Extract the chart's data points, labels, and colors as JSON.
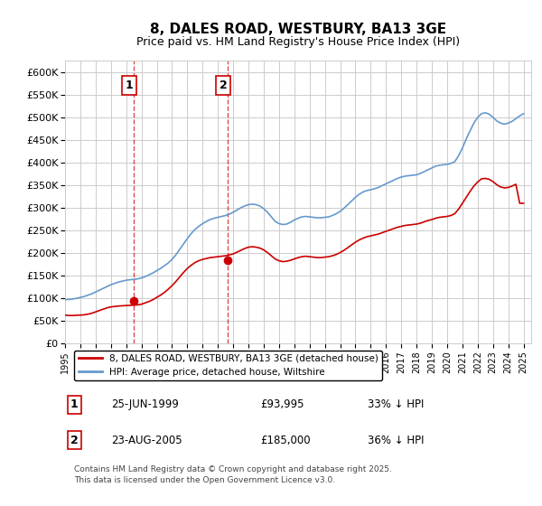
{
  "title": "8, DALES ROAD, WESTBURY, BA13 3GE",
  "subtitle": "Price paid vs. HM Land Registry's House Price Index (HPI)",
  "legend_label_red": "8, DALES ROAD, WESTBURY, BA13 3GE (detached house)",
  "legend_label_blue": "HPI: Average price, detached house, Wiltshire",
  "annotation1_label": "1",
  "annotation1_date": "25-JUN-1999",
  "annotation1_price": "£93,995",
  "annotation1_hpi": "33% ↓ HPI",
  "annotation1_year": 1999.48,
  "annotation1_value_red": 93995,
  "annotation2_label": "2",
  "annotation2_date": "23-AUG-2005",
  "annotation2_price": "£185,000",
  "annotation2_hpi": "36% ↓ HPI",
  "annotation2_year": 2005.64,
  "annotation2_value_red": 185000,
  "footer": "Contains HM Land Registry data © Crown copyright and database right 2025.\nThis data is licensed under the Open Government Licence v3.0.",
  "color_red": "#cc0000",
  "color_blue": "#6699cc",
  "color_vline": "#cc0000",
  "ylim": [
    0,
    625000
  ],
  "ytick_step": 50000,
  "background_color": "#ffffff",
  "grid_color": "#cccccc",
  "hpi_years": [
    1995,
    1995.25,
    1995.5,
    1995.75,
    1996,
    1996.25,
    1996.5,
    1996.75,
    1997,
    1997.25,
    1997.5,
    1997.75,
    1998,
    1998.25,
    1998.5,
    1998.75,
    1999,
    1999.25,
    1999.5,
    1999.75,
    2000,
    2000.25,
    2000.5,
    2000.75,
    2001,
    2001.25,
    2001.5,
    2001.75,
    2002,
    2002.25,
    2002.5,
    2002.75,
    2003,
    2003.25,
    2003.5,
    2003.75,
    2004,
    2004.25,
    2004.5,
    2004.75,
    2005,
    2005.25,
    2005.5,
    2005.75,
    2006,
    2006.25,
    2006.5,
    2006.75,
    2007,
    2007.25,
    2007.5,
    2007.75,
    2008,
    2008.25,
    2008.5,
    2008.75,
    2009,
    2009.25,
    2009.5,
    2009.75,
    2010,
    2010.25,
    2010.5,
    2010.75,
    2011,
    2011.25,
    2011.5,
    2011.75,
    2012,
    2012.25,
    2012.5,
    2012.75,
    2013,
    2013.25,
    2013.5,
    2013.75,
    2014,
    2014.25,
    2014.5,
    2014.75,
    2015,
    2015.25,
    2015.5,
    2015.75,
    2016,
    2016.25,
    2016.5,
    2016.75,
    2017,
    2017.25,
    2017.5,
    2017.75,
    2018,
    2018.25,
    2018.5,
    2018.75,
    2019,
    2019.25,
    2019.5,
    2019.75,
    2020,
    2020.25,
    2020.5,
    2020.75,
    2021,
    2021.25,
    2021.5,
    2021.75,
    2022,
    2022.25,
    2022.5,
    2022.75,
    2023,
    2023.25,
    2023.5,
    2023.75,
    2024,
    2024.25,
    2024.5,
    2024.75,
    2025
  ],
  "hpi_values": [
    97000,
    97500,
    98500,
    100000,
    102000,
    104000,
    107000,
    110000,
    114000,
    118000,
    122000,
    126000,
    130000,
    133000,
    136000,
    138000,
    140000,
    141000,
    142000,
    143000,
    145000,
    148000,
    152000,
    156000,
    161000,
    166000,
    172000,
    178000,
    186000,
    196000,
    208000,
    220000,
    232000,
    243000,
    252000,
    259000,
    265000,
    270000,
    274000,
    277000,
    279000,
    281000,
    283000,
    286000,
    290000,
    295000,
    300000,
    304000,
    307000,
    308000,
    307000,
    304000,
    298000,
    290000,
    280000,
    270000,
    265000,
    263000,
    264000,
    268000,
    273000,
    277000,
    280000,
    281000,
    280000,
    279000,
    278000,
    278000,
    279000,
    280000,
    283000,
    287000,
    292000,
    299000,
    307000,
    315000,
    323000,
    330000,
    335000,
    338000,
    340000,
    342000,
    345000,
    349000,
    353000,
    357000,
    361000,
    365000,
    368000,
    370000,
    371000,
    372000,
    373000,
    376000,
    380000,
    384000,
    388000,
    392000,
    394000,
    395000,
    396000,
    398000,
    402000,
    415000,
    432000,
    452000,
    470000,
    487000,
    500000,
    508000,
    510000,
    507000,
    500000,
    492000,
    487000,
    485000,
    487000,
    491000,
    497000,
    503000,
    508000
  ],
  "red_years": [
    1995,
    1995.25,
    1995.5,
    1995.75,
    1996,
    1996.25,
    1996.5,
    1996.75,
    1997,
    1997.25,
    1997.5,
    1997.75,
    1998,
    1998.25,
    1998.5,
    1998.75,
    1999,
    1999.25,
    1999.5,
    1999.75,
    2000,
    2000.25,
    2000.5,
    2000.75,
    2001,
    2001.25,
    2001.5,
    2001.75,
    2002,
    2002.25,
    2002.5,
    2002.75,
    2003,
    2003.25,
    2003.5,
    2003.75,
    2004,
    2004.25,
    2004.5,
    2004.75,
    2005,
    2005.25,
    2005.5,
    2005.75,
    2006,
    2006.25,
    2006.5,
    2006.75,
    2007,
    2007.25,
    2007.5,
    2007.75,
    2008,
    2008.25,
    2008.5,
    2008.75,
    2009,
    2009.25,
    2009.5,
    2009.75,
    2010,
    2010.25,
    2010.5,
    2010.75,
    2011,
    2011.25,
    2011.5,
    2011.75,
    2012,
    2012.25,
    2012.5,
    2012.75,
    2013,
    2013.25,
    2013.5,
    2013.75,
    2014,
    2014.25,
    2014.5,
    2014.75,
    2015,
    2015.25,
    2015.5,
    2015.75,
    2016,
    2016.25,
    2016.5,
    2016.75,
    2017,
    2017.25,
    2017.5,
    2017.75,
    2018,
    2018.25,
    2018.5,
    2018.75,
    2019,
    2019.25,
    2019.5,
    2019.75,
    2020,
    2020.25,
    2020.5,
    2020.75,
    2021,
    2021.25,
    2021.5,
    2021.75,
    2022,
    2022.25,
    2022.5,
    2022.75,
    2023,
    2023.25,
    2023.5,
    2023.75,
    2024,
    2024.25,
    2024.5,
    2024.75,
    2025
  ],
  "red_values": [
    63000,
    62000,
    62000,
    62500,
    63000,
    63500,
    65000,
    67000,
    70000,
    73000,
    76000,
    79000,
    81000,
    82000,
    83000,
    83500,
    84000,
    84500,
    85000,
    85500,
    87000,
    90000,
    93000,
    97000,
    102000,
    107000,
    113000,
    120000,
    128000,
    137000,
    147000,
    157000,
    166000,
    173000,
    179000,
    183000,
    186000,
    188000,
    190000,
    191000,
    192000,
    193000,
    194000,
    196000,
    198000,
    202000,
    206000,
    210000,
    213000,
    214000,
    213000,
    211000,
    207000,
    201000,
    194000,
    187000,
    183000,
    181000,
    182000,
    184000,
    187000,
    190000,
    192000,
    193000,
    192000,
    191000,
    190000,
    190000,
    191000,
    192000,
    194000,
    197000,
    201000,
    206000,
    212000,
    218000,
    224000,
    229000,
    233000,
    236000,
    238000,
    240000,
    242000,
    245000,
    248000,
    251000,
    254000,
    257000,
    259000,
    261000,
    262000,
    263000,
    264000,
    266000,
    269000,
    272000,
    274000,
    277000,
    279000,
    280000,
    281000,
    283000,
    287000,
    297000,
    310000,
    323000,
    336000,
    348000,
    357000,
    364000,
    365000,
    363000,
    358000,
    351000,
    346000,
    344000,
    345000,
    348000,
    352000,
    310000,
    310000
  ],
  "xtick_years": [
    1995,
    1996,
    1997,
    1998,
    1999,
    2000,
    2001,
    2002,
    2003,
    2004,
    2005,
    2006,
    2007,
    2008,
    2009,
    2010,
    2011,
    2012,
    2013,
    2014,
    2015,
    2016,
    2017,
    2018,
    2019,
    2020,
    2021,
    2022,
    2023,
    2024,
    2025
  ]
}
